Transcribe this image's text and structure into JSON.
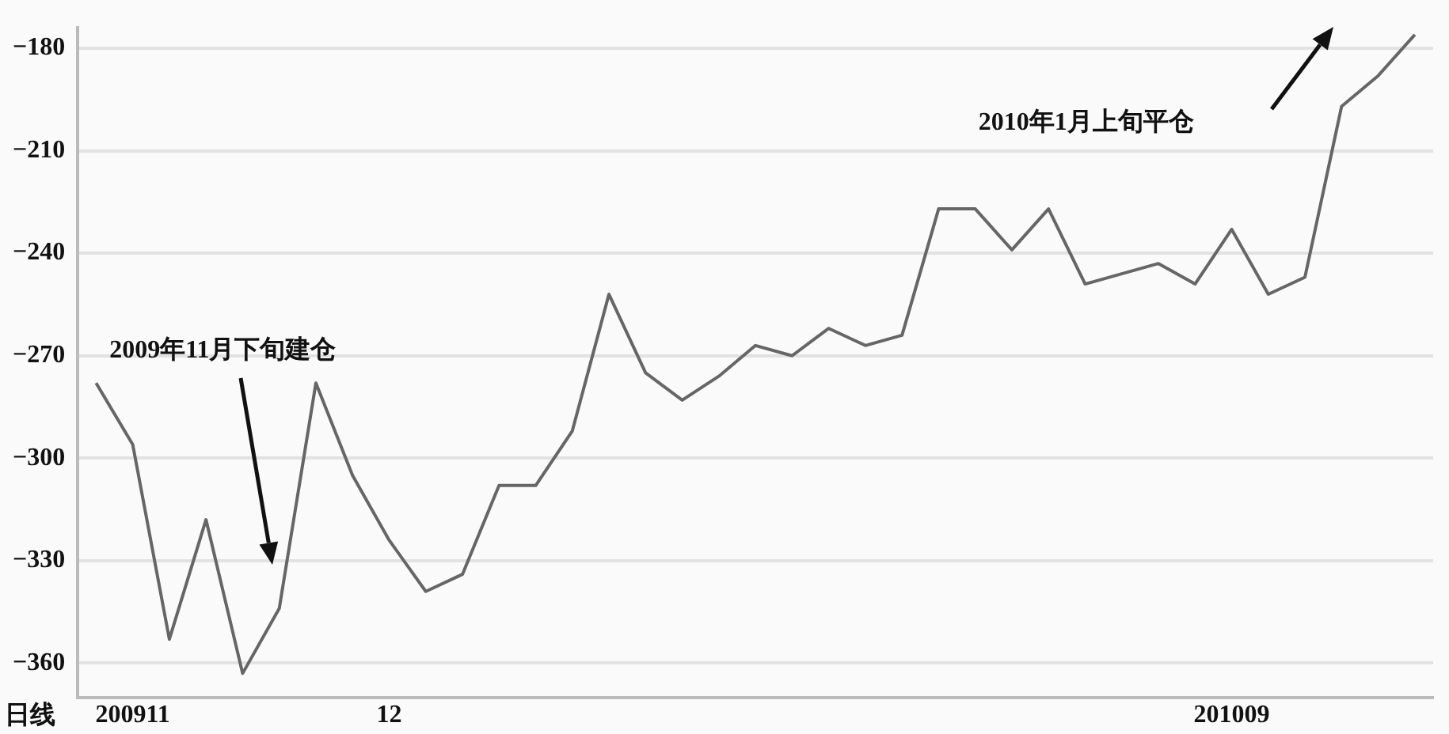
{
  "chart_data": {
    "type": "line",
    "categories": [
      null,
      "200911",
      null,
      null,
      null,
      null,
      null,
      null,
      "12",
      null,
      null,
      null,
      null,
      null,
      null,
      null,
      null,
      null,
      null,
      null,
      null,
      null,
      null,
      null,
      null,
      null,
      null,
      null,
      null,
      null,
      null,
      "201009",
      null,
      null,
      null,
      null,
      null
    ],
    "values": [
      -278,
      -296,
      -353,
      -318,
      -363,
      -344,
      -278,
      -305,
      -324,
      -339,
      -334,
      -308,
      -308,
      -292,
      -252,
      -275,
      -283,
      -276,
      -267,
      -270,
      -262,
      -267,
      -264,
      -227,
      -227,
      -239,
      -227,
      -249,
      -246,
      -243,
      -249,
      -233,
      -252,
      -247,
      -197,
      -188,
      -176
    ],
    "color": "#666666",
    "ylim": [
      -370,
      -174
    ],
    "yticks": [
      -180,
      -210,
      -240,
      -270,
      -300,
      -330,
      -360
    ],
    "grid": "y",
    "legend": false,
    "marker": "none",
    "line_style": "solid",
    "annotations": [
      "2009年11月下旬建仓",
      "2010年1月上旬平仓",
      "日线"
    ]
  }
}
